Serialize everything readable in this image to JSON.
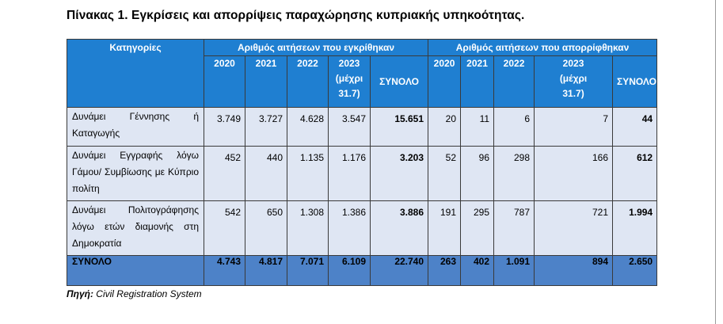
{
  "title": "Πίνακας 1. Εγκρίσεις και απορρίψεις παραχώρησης κυπριακής υπηκοότητας.",
  "table": {
    "category_header": "Κατηγορίες",
    "approved_group": "Αριθμός αιτήσεων που εγκρίθηκαν",
    "rejected_group": "Αριθμός αιτήσεων που απορρίφθηκαν",
    "year_headers": [
      "2020",
      "2021",
      "2022",
      "2023\n(μέχρι\n31.7)",
      "ΣΥΝΟΛΟ"
    ],
    "rows": [
      {
        "category": "Δυνάμει Γέννησης ή Καταγωγής",
        "approved": [
          "3.749",
          "3.727",
          "4.628",
          "3.547",
          "15.651"
        ],
        "rejected": [
          "20",
          "11",
          "6",
          "7",
          "44"
        ]
      },
      {
        "category": "Δυνάμει Εγγραφής λόγω Γάμου/ Συμβίωσης με Κύπριο πολίτη",
        "approved": [
          "452",
          "440",
          "1.135",
          "1.176",
          "3.203"
        ],
        "rejected": [
          "52",
          "96",
          "298",
          "166",
          "612"
        ]
      },
      {
        "category": "Δυνάμει Πολιτογράφησης λόγω ετών διαμονής στη Δημοκρατία",
        "approved": [
          "542",
          "650",
          "1.308",
          "1.386",
          "3.886"
        ],
        "rejected": [
          "191",
          "295",
          "787",
          "721",
          "1.994"
        ]
      }
    ],
    "total": {
      "label": "ΣΥΝΟΛΟ",
      "approved": [
        "4.743",
        "4.817",
        "7.071",
        "6.109",
        "22.740"
      ],
      "rejected": [
        "263",
        "402",
        "1.091",
        "894",
        "2.650"
      ]
    }
  },
  "source": {
    "label": "Πηγή:",
    "text": "Civil Registration System"
  },
  "colors": {
    "header_blue": "#1f7fd1",
    "row_fill": "#dfe6f3",
    "total_fill": "#4d82c8"
  }
}
